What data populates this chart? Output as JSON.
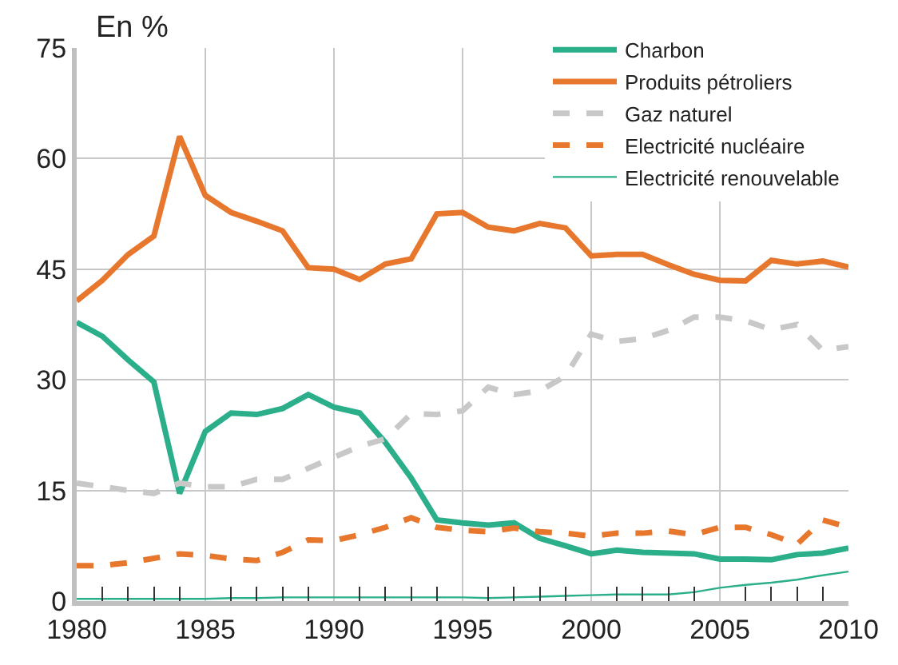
{
  "chart_data": {
    "type": "line",
    "ylabel": "En %",
    "x": [
      1980,
      1981,
      1982,
      1983,
      1984,
      1985,
      1986,
      1987,
      1988,
      1989,
      1990,
      1991,
      1992,
      1993,
      1994,
      1995,
      1996,
      1997,
      1998,
      1999,
      2000,
      2001,
      2002,
      2003,
      2004,
      2005,
      2006,
      2007,
      2008,
      2009,
      2010
    ],
    "series": [
      {
        "name": "Charbon",
        "color": "#2bae8a",
        "line_style": "solid",
        "values": [
          37.8,
          35.9,
          32.7,
          29.7,
          14.6,
          23,
          25.5,
          25.3,
          26.1,
          28,
          26.3,
          25.5,
          21.5,
          16.7,
          11,
          10.6,
          10.3,
          10.6,
          8.5,
          7.5,
          6.4,
          6.9,
          6.6,
          6.5,
          6.4,
          5.7,
          5.7,
          5.6,
          6.3,
          6.5,
          7.2
        ]
      },
      {
        "name": "Produits pétroliers",
        "color": "#e8772e",
        "line_style": "solid",
        "values": [
          40.7,
          43.5,
          47,
          49.5,
          63,
          55,
          52.7,
          51.5,
          50.2,
          45.2,
          45,
          43.6,
          45.7,
          46.4,
          52.5,
          52.7,
          50.7,
          50.2,
          51.2,
          50.6,
          46.8,
          47,
          47,
          45.6,
          44.3,
          43.5,
          43.4,
          46.2,
          45.7,
          46.1,
          45.3
        ]
      },
      {
        "name": "Gaz naturel",
        "color": "#c8c8c8",
        "line_style": "dashed",
        "values": [
          16,
          15.5,
          15,
          14.6,
          16,
          15.5,
          15.5,
          16.5,
          16.5,
          18,
          19.5,
          21,
          22,
          25.4,
          25.3,
          25.8,
          29,
          28,
          28.5,
          30.5,
          36.2,
          35.2,
          35.6,
          36.7,
          38.5,
          38.5,
          38,
          36.8,
          37.5,
          34,
          34.5
        ]
      },
      {
        "name": "Electricité nucléaire",
        "color": "#e8772e",
        "line_style": "dashed",
        "values": [
          4.8,
          4.8,
          5.2,
          5.8,
          6.4,
          6.2,
          5.7,
          5.5,
          6.6,
          8.3,
          8.2,
          9,
          10,
          11.3,
          10,
          9.6,
          9.4,
          9.9,
          9.4,
          9.2,
          8.8,
          9.2,
          9.2,
          9.5,
          9,
          10,
          10,
          9,
          7.7,
          11,
          10
        ]
      },
      {
        "name": "Electricité renouvelable",
        "color": "#2bae8a",
        "line_style": "solid",
        "values": [
          0.3,
          0.3,
          0.3,
          0.3,
          0.3,
          0.3,
          0.4,
          0.4,
          0.5,
          0.5,
          0.5,
          0.5,
          0.5,
          0.5,
          0.5,
          0.5,
          0.4,
          0.5,
          0.6,
          0.7,
          0.8,
          0.9,
          0.9,
          0.9,
          1.2,
          1.8,
          2.2,
          2.5,
          2.9,
          3.5,
          4
        ]
      }
    ],
    "xlim": [
      1980,
      2010
    ],
    "xticks": [
      1980,
      {
        "value": 1981,
        "label": null
      },
      {
        "value": 1982,
        "label": null
      },
      {
        "value": 1983,
        "label": null
      },
      {
        "value": 1984,
        "label": null
      },
      1985,
      {
        "value": 1986,
        "label": null
      },
      {
        "value": 1987,
        "label": null
      },
      {
        "value": 1988,
        "label": null
      },
      {
        "value": 1989,
        "label": null
      },
      1990,
      {
        "value": 1991,
        "label": null
      },
      {
        "value": 1992,
        "label": null
      },
      {
        "value": 1993,
        "label": null
      },
      {
        "value": 1994,
        "label": null
      },
      1995,
      {
        "value": 1996,
        "label": null
      },
      {
        "value": 1997,
        "label": null
      },
      {
        "value": 1998,
        "label": null
      },
      {
        "value": 1999,
        "label": null
      },
      2000,
      {
        "value": 2001,
        "label": null
      },
      {
        "value": 2002,
        "label": null
      },
      {
        "value": 2003,
        "label": null
      },
      {
        "value": 2004,
        "label": null
      },
      2005,
      {
        "value": 2006,
        "label": null
      },
      {
        "value": 2007,
        "label": null
      },
      {
        "value": 2008,
        "label": null
      },
      {
        "value": 2009,
        "label": null
      },
      2010
    ],
    "ylim": [
      0,
      75
    ],
    "yticks": [
      0,
      15,
      30,
      45,
      60,
      75
    ],
    "grid": true,
    "legend": "top right",
    "marker": "none"
  }
}
